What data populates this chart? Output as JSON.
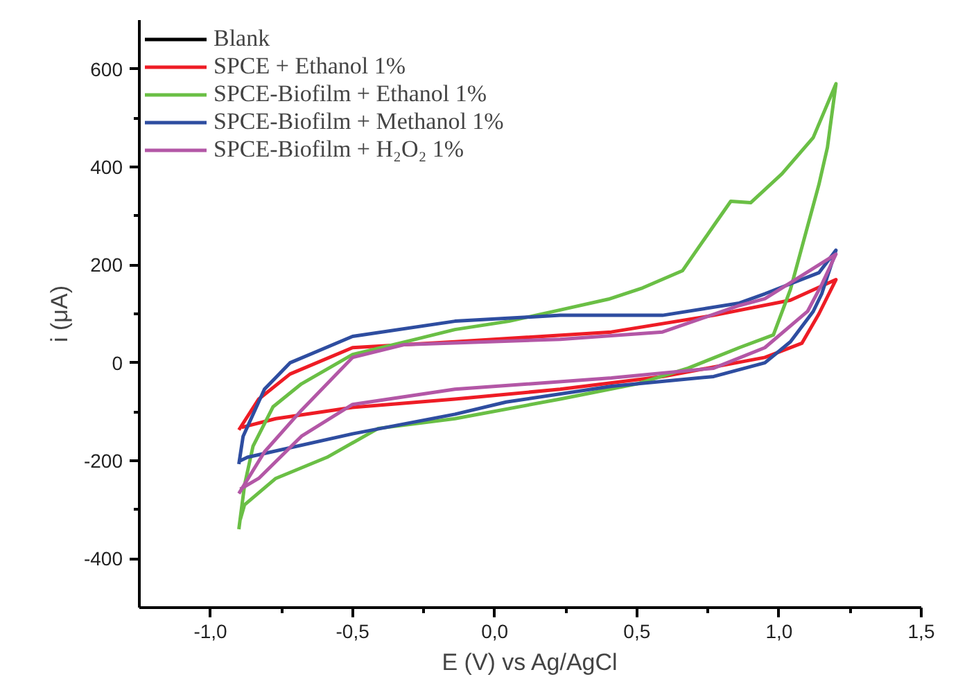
{
  "chart_data": {
    "type": "line",
    "xlabel": "E (V) vs Ag/AgCl",
    "ylabel": "i (μA)",
    "xlim": [
      -1.25,
      1.5
    ],
    "ylim": [
      -500,
      700
    ],
    "xticks": [
      {
        "value": -1,
        "label": "-1,0"
      },
      {
        "value": -0.75,
        "label": null
      },
      {
        "value": -0.5,
        "label": "-0,5"
      },
      {
        "value": -0.25,
        "label": null
      },
      {
        "value": 0,
        "label": "0,0"
      },
      {
        "value": 0.25,
        "label": null
      },
      {
        "value": 0.5,
        "label": "0,5"
      },
      {
        "value": 0.75,
        "label": null
      },
      {
        "value": 1,
        "label": "1,0"
      },
      {
        "value": 1.25,
        "label": null
      },
      {
        "value": 1.5,
        "label": "1,5"
      }
    ],
    "yticks": [
      -400,
      {
        "value": -300,
        "label": null
      },
      -200,
      {
        "value": -100,
        "label": null
      },
      0,
      {
        "value": 100,
        "label": null
      },
      200,
      {
        "value": 300,
        "label": null
      },
      400,
      {
        "value": 500,
        "label": null
      },
      600
    ],
    "grid": false,
    "legend": "top left",
    "line_style": "solid",
    "marker": "none",
    "series": [
      {
        "name": "Blank",
        "color": "#000000"
      },
      {
        "name": "SPCE + Ethanol 1%",
        "color": "#ee1c25",
        "x": [
          -0.9,
          -0.83,
          -0.72,
          -0.5,
          -0.14,
          0.41,
          0.77,
          1.04,
          1.2,
          1.14,
          1.08,
          0.95,
          0.59,
          0.23,
          -0.14,
          -0.5,
          -0.77,
          -0.89
        ],
        "values": [
          -137,
          -74,
          -23,
          31,
          43,
          63,
          97,
          128,
          170,
          100,
          40,
          11,
          -28,
          -54,
          -74,
          -91,
          -114,
          -132
        ]
      },
      {
        "name": "SPCE-Biofilm + Ethanol 1%",
        "color": "#6abf45",
        "x": [
          -0.9,
          -0.88,
          -0.85,
          -0.78,
          -0.68,
          -0.5,
          -0.3,
          -0.14,
          0.05,
          0.23,
          0.4,
          0.52,
          0.66,
          0.77,
          0.83,
          0.9,
          1.01,
          1.12,
          1.2,
          1.17,
          1.14,
          1.04,
          0.98,
          0.86,
          0.68,
          0.5,
          0.23,
          -0.14,
          -0.41,
          -0.59,
          -0.77,
          -0.88,
          -0.895
        ],
        "values": [
          -340,
          -250,
          -170,
          -90,
          -43,
          17,
          45,
          68,
          85,
          108,
          130,
          153,
          188,
          280,
          330,
          327,
          386,
          460,
          570,
          440,
          364,
          150,
          57,
          31,
          -11,
          -43,
          -74,
          -114,
          -134,
          -193,
          -236,
          -290,
          -320
        ]
      },
      {
        "name": "SPCE-Biofilm + Methanol 1%",
        "color": "#2e4da0",
        "x": [
          -0.9,
          -0.885,
          -0.81,
          -0.72,
          -0.5,
          -0.14,
          0.23,
          0.59,
          0.86,
          0.95,
          1.14,
          1.2,
          1.15,
          1.12,
          1.04,
          0.95,
          0.77,
          0.41,
          0.04,
          -0.14,
          -0.5,
          -0.87,
          -0.895
        ],
        "values": [
          -207,
          -150,
          -54,
          0,
          54,
          85,
          97,
          97,
          122,
          141,
          184,
          230,
          141,
          105,
          43,
          0,
          -28,
          -48,
          -80,
          -105,
          -145,
          -193,
          -200
        ]
      },
      {
        "name": "SPCE-Biofilm + H₂O₂ 1%",
        "color": "#b357a6",
        "x": [
          -0.9,
          -0.81,
          -0.68,
          -0.5,
          -0.32,
          0.23,
          0.59,
          0.86,
          0.95,
          1.2,
          1.15,
          1.1,
          0.95,
          0.77,
          0.41,
          -0.14,
          -0.5,
          -0.68,
          -0.83,
          -0.895
        ],
        "values": [
          -267,
          -182,
          -97,
          11,
          37,
          48,
          63,
          117,
          131,
          222,
          160,
          105,
          31,
          -11,
          -31,
          -54,
          -85,
          -150,
          -236,
          -258
        ]
      }
    ]
  }
}
